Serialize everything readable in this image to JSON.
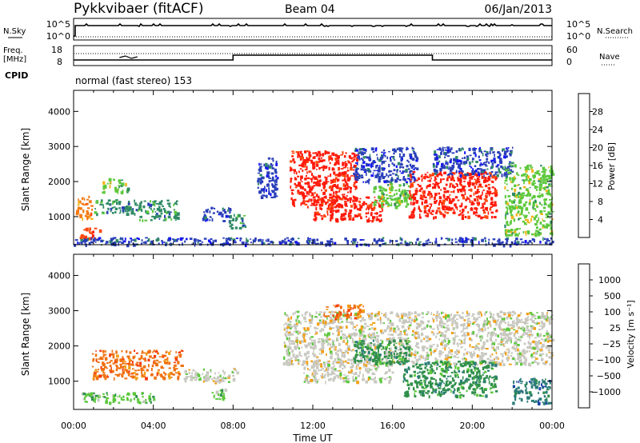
{
  "header": {
    "station": "Pykkvibaer (fitACF)",
    "beam": "Beam 04",
    "date": "06/Jan/2013"
  },
  "strips": {
    "nsky_label": "N.Sky",
    "nsky_ticks": [
      "10^5",
      "10^0"
    ],
    "nsearch_label": "N.Search",
    "nsearch_ticks": [
      "10^5",
      "10^0"
    ],
    "freq_label": "Freq.",
    "freq_unit": "[MHz]",
    "freq_ticks": [
      "18",
      "8"
    ],
    "nave_label": "Nave",
    "nave_ticks": [
      "60",
      "0"
    ],
    "cpid_label": "CPID",
    "cpid_text": "normal (fast stereo) 153"
  },
  "chart_data": [
    {
      "type": "heatmap",
      "quantity": "power",
      "ylabel": "Slant Range [km]",
      "xlabel": "Time UT",
      "xlim": [
        0,
        24
      ],
      "ylim": [
        200,
        4600
      ],
      "yticks": [
        1000,
        2000,
        3000,
        4000
      ],
      "colorbar": {
        "label": "Power [dB]",
        "ticks": [
          "4",
          "8",
          "12",
          "16",
          "20",
          "24",
          "28"
        ],
        "colors": [
          "#1515f5",
          "#2a3fb8",
          "#2f8a66",
          "#5cc83c",
          "#f2b41c",
          "#f57a14",
          "#ff4a10",
          "#ff1a0a"
        ]
      },
      "bands": [
        {
          "t0": 0.1,
          "t1": 0.9,
          "r0": 900,
          "r1": 1600,
          "c": 5
        },
        {
          "t0": 0.3,
          "t1": 1.3,
          "r0": 400,
          "r1": 700,
          "c": 6
        },
        {
          "t0": 1.0,
          "t1": 3.2,
          "r0": 1100,
          "r1": 1500,
          "c": 2
        },
        {
          "t0": 1.4,
          "t1": 2.8,
          "r0": 1700,
          "r1": 2100,
          "c": 3
        },
        {
          "t0": 3.2,
          "t1": 5.2,
          "r0": 900,
          "r1": 1500,
          "c": 2
        },
        {
          "t0": 6.4,
          "t1": 7.8,
          "r0": 900,
          "r1": 1300,
          "c": 1
        },
        {
          "t0": 7.8,
          "t1": 8.6,
          "r0": 700,
          "r1": 1100,
          "c": 2
        },
        {
          "t0": 9.2,
          "t1": 10.2,
          "r0": 1500,
          "r1": 2700,
          "c": 1
        },
        {
          "t0": 10.8,
          "t1": 14.2,
          "r0": 1300,
          "r1": 2900,
          "c": 7
        },
        {
          "t0": 12.0,
          "t1": 15.5,
          "r0": 900,
          "r1": 1600,
          "c": 7
        },
        {
          "t0": 14.0,
          "t1": 17.2,
          "r0": 2000,
          "r1": 3000,
          "c": 1
        },
        {
          "t0": 15.0,
          "t1": 17.0,
          "r0": 1300,
          "r1": 2000,
          "c": 3
        },
        {
          "t0": 16.8,
          "t1": 21.2,
          "r0": 1000,
          "r1": 2300,
          "c": 7
        },
        {
          "t0": 18.0,
          "t1": 22.0,
          "r0": 2200,
          "r1": 3000,
          "c": 1
        },
        {
          "t0": 21.6,
          "t1": 24.0,
          "r0": 500,
          "r1": 2500,
          "c": 3
        },
        {
          "t0": 0.0,
          "t1": 24.0,
          "r0": 220,
          "r1": 420,
          "c": 1
        }
      ]
    },
    {
      "type": "heatmap",
      "quantity": "velocity",
      "ylabel": "Slant Range [km]",
      "xlabel": "Time UT",
      "xlim": [
        0,
        24
      ],
      "ylim": [
        200,
        4600
      ],
      "yticks": [
        1000,
        2000,
        3000,
        4000
      ],
      "xticks": [
        "00:00",
        "04:00",
        "08:00",
        "12:00",
        "16:00",
        "20:00",
        "00:00"
      ],
      "colorbar": {
        "label": "Velocity [m s⁻¹]",
        "ticks": [
          "1000",
          "500",
          "100",
          "25",
          "−25",
          "−100",
          "−500",
          "−1000"
        ],
        "colors": [
          "#1c3fa8",
          "#2a7c78",
          "#2f8f4a",
          "#5cc83c",
          "#c8c8c0",
          "#f2a018",
          "#f07010",
          "#f43a0c",
          "#ff0a0a"
        ]
      },
      "bands": [
        {
          "t0": 0.9,
          "t1": 5.4,
          "r0": 1100,
          "r1": 1900,
          "c": 6
        },
        {
          "t0": 0.3,
          "t1": 4.0,
          "r0": 400,
          "r1": 700,
          "c": 3
        },
        {
          "t0": 5.5,
          "t1": 8.2,
          "r0": 1000,
          "r1": 1400,
          "c": 4
        },
        {
          "t0": 6.8,
          "t1": 7.6,
          "r0": 500,
          "r1": 800,
          "c": 3
        },
        {
          "t0": 10.5,
          "t1": 24.0,
          "r0": 1500,
          "r1": 3000,
          "c": 4
        },
        {
          "t0": 11.5,
          "t1": 16.0,
          "r0": 1000,
          "r1": 1600,
          "c": 4
        },
        {
          "t0": 14.0,
          "t1": 16.8,
          "r0": 1500,
          "r1": 2200,
          "c": 2
        },
        {
          "t0": 16.5,
          "t1": 21.2,
          "r0": 600,
          "r1": 1600,
          "c": 2
        },
        {
          "t0": 22.0,
          "t1": 23.9,
          "r0": 400,
          "r1": 1100,
          "c": 1
        },
        {
          "t0": 12.5,
          "t1": 14.5,
          "r0": 2800,
          "r1": 3200,
          "c": 6
        }
      ]
    }
  ]
}
